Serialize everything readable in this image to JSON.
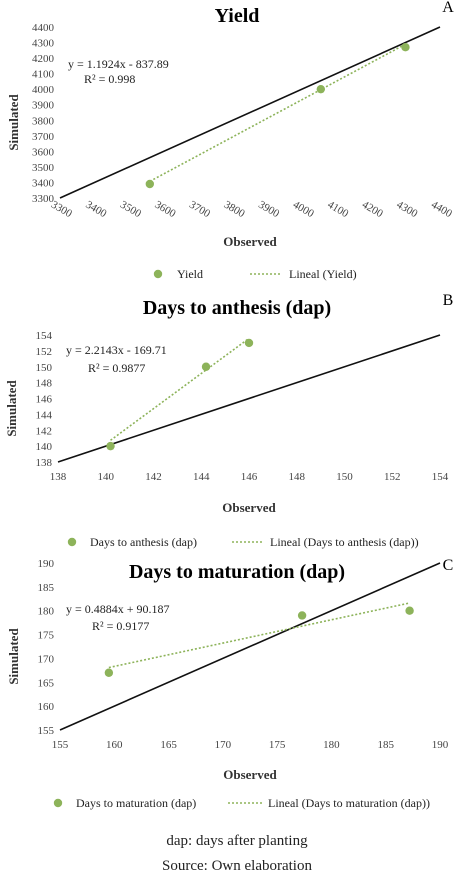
{
  "chart_data": [
    {
      "type": "scatter",
      "panel": "A",
      "title": "Yield",
      "xlabel": "Observed",
      "ylabel": "Simulated",
      "xlim": [
        3300,
        4400
      ],
      "ylim": [
        3300,
        4400
      ],
      "xticks": [
        3300,
        3400,
        3500,
        3600,
        3700,
        3800,
        3900,
        4000,
        4100,
        4200,
        4300,
        4400
      ],
      "yticks": [
        3300,
        3400,
        3500,
        3600,
        3700,
        3800,
        3900,
        4000,
        4100,
        4200,
        4300,
        4400
      ],
      "series": [
        {
          "name": "Yield",
          "x": [
            3560,
            4055,
            4300
          ],
          "y": [
            3390,
            4000,
            4270
          ],
          "color": "#8db35a"
        }
      ],
      "trendline": {
        "name": "Lineal (Yield)",
        "slope": 1.1924,
        "intercept": -837.89
      },
      "equation": "y = 1.1924x - 837.89",
      "r2": "R² = 0.998",
      "grid": false,
      "legend": "bottom"
    },
    {
      "type": "scatter",
      "panel": "B",
      "title": "Days to anthesis (dap)",
      "xlabel": "Observed",
      "ylabel": "Simulated",
      "xlim": [
        138,
        154
      ],
      "ylim": [
        138,
        154
      ],
      "xticks": [
        138,
        140,
        142,
        144,
        146,
        148,
        150,
        152,
        154
      ],
      "yticks": [
        138,
        140,
        142,
        144,
        146,
        148,
        150,
        152,
        154
      ],
      "series": [
        {
          "name": "Days to anthesis (dap)",
          "x": [
            140.2,
            144.2,
            146.0
          ],
          "y": [
            140,
            150,
            153
          ],
          "color": "#8db35a"
        }
      ],
      "trendline": {
        "name": "Lineal (Days to anthesis (dap))",
        "slope": 2.2143,
        "intercept": -169.71
      },
      "equation": "y = 2.2143x - 169.71",
      "r2": "R² = 0.9877",
      "grid": false,
      "legend": "bottom"
    },
    {
      "type": "scatter",
      "panel": "C",
      "title": "Days to maturation (dap)",
      "xlabel": "Observed",
      "ylabel": "Simulated",
      "xlim": [
        155,
        190
      ],
      "ylim": [
        155,
        190
      ],
      "xticks": [
        155,
        160,
        165,
        170,
        175,
        180,
        185,
        190
      ],
      "yticks": [
        155,
        160,
        165,
        170,
        175,
        180,
        185,
        190
      ],
      "series": [
        {
          "name": "Days to maturation (dap)",
          "x": [
            159.5,
            177.3,
            187.2
          ],
          "y": [
            167,
            179,
            180
          ],
          "color": "#8db35a"
        }
      ],
      "trendline": {
        "name": "Lineal (Days to maturation (dap))",
        "slope": 0.4884,
        "intercept": 90.187
      },
      "equation": "y = 0.4884x + 90.187",
      "r2": "R² = 0.9177",
      "grid": false,
      "legend": "bottom"
    }
  ],
  "footer": {
    "note": "dap: days after planting",
    "source": "Source: Own elaboration"
  }
}
